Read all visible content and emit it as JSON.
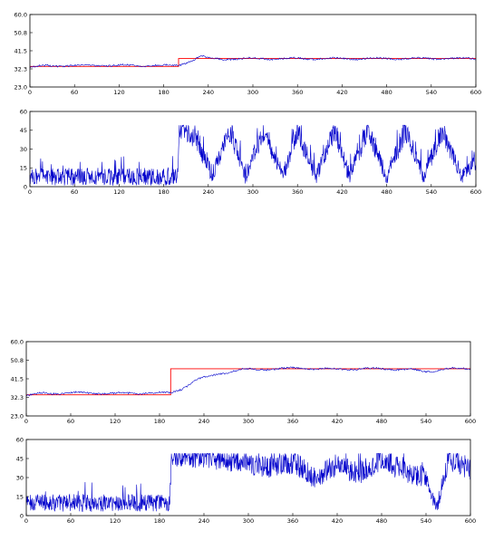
{
  "chart_data": [
    {
      "type": "line",
      "title": "",
      "xlabel": "",
      "ylabel": "",
      "xlim": [
        0,
        600
      ],
      "ylim": [
        23.0,
        60.0
      ],
      "xticks": [
        0,
        60,
        120,
        180,
        240,
        300,
        360,
        420,
        480,
        540,
        600
      ],
      "yticks": [
        "60.0",
        "50.8",
        "41.5",
        "32.3",
        "23.0"
      ],
      "grid": false,
      "series": [
        {
          "color": "#ff0000",
          "style": "step",
          "x": [
            0,
            200,
            200,
            600
          ],
          "y": [
            33.5,
            33.5,
            37.5,
            37.5
          ]
        },
        {
          "color": "#0000cc",
          "style": "approx",
          "x": [
            0,
            20,
            60,
            120,
            180,
            200,
            210,
            220,
            230,
            240,
            260,
            300,
            360,
            420,
            480,
            540,
            600
          ],
          "y": [
            33.0,
            33.8,
            34.0,
            34.0,
            34.0,
            34.0,
            35.5,
            37.0,
            38.8,
            37.5,
            37.3,
            37.5,
            37.5,
            37.5,
            37.5,
            37.5,
            37.5
          ]
        }
      ]
    },
    {
      "type": "line",
      "title": "",
      "xlabel": "",
      "ylabel": "",
      "xlim": [
        0,
        600
      ],
      "ylim": [
        0,
        60
      ],
      "xticks": [
        0,
        60,
        120,
        180,
        240,
        300,
        360,
        420,
        480,
        540,
        600
      ],
      "yticks": [
        "60",
        "45",
        "30",
        "15",
        "0"
      ],
      "grid": false,
      "series": [
        {
          "color": "#0000cc",
          "style": "noisy",
          "x": [
            0,
            100,
            199,
            201,
            220,
            245,
            270,
            290,
            315,
            340,
            360,
            385,
            410,
            430,
            455,
            480,
            505,
            530,
            555,
            580,
            600
          ],
          "y": [
            8,
            8,
            8,
            48,
            40,
            10,
            45,
            8,
            45,
            8,
            45,
            8,
            45,
            8,
            45,
            8,
            45,
            8,
            45,
            8,
            20
          ]
        }
      ]
    },
    {
      "type": "line",
      "title": "",
      "xlabel": "",
      "ylabel": "",
      "xlim": [
        0,
        600
      ],
      "ylim": [
        23.0,
        60.0
      ],
      "xticks": [
        0,
        60,
        120,
        180,
        240,
        300,
        360,
        420,
        480,
        540,
        600
      ],
      "yticks": [
        "60.0",
        "50.8",
        "41.5",
        "32.3",
        "23.0"
      ],
      "grid": false,
      "series": [
        {
          "color": "#ff0000",
          "style": "step",
          "x": [
            0,
            195,
            195,
            600
          ],
          "y": [
            33.5,
            33.5,
            46.5,
            46.5
          ]
        },
        {
          "color": "#0000cc",
          "style": "approx",
          "x": [
            0,
            20,
            60,
            120,
            180,
            195,
            210,
            230,
            260,
            290,
            330,
            360,
            420,
            480,
            520,
            540,
            570,
            600
          ],
          "y": [
            33.0,
            34.2,
            34.5,
            34.2,
            34.5,
            34.5,
            36.5,
            41.0,
            44.0,
            46.0,
            46.3,
            46.8,
            46.3,
            46.5,
            46.0,
            45.0,
            46.5,
            46.5
          ]
        }
      ]
    },
    {
      "type": "line",
      "title": "",
      "xlabel": "",
      "ylabel": "",
      "xlim": [
        0,
        600
      ],
      "ylim": [
        0,
        60
      ],
      "xticks": [
        0,
        60,
        120,
        180,
        240,
        300,
        360,
        420,
        480,
        540,
        600
      ],
      "yticks": [
        "60",
        "45",
        "30",
        "15",
        "0"
      ],
      "grid": false,
      "series": [
        {
          "color": "#0000cc",
          "style": "noisy",
          "x": [
            0,
            100,
            194,
            196,
            230,
            270,
            300,
            330,
            360,
            390,
            420,
            450,
            480,
            510,
            540,
            555,
            560,
            570,
            590,
            600
          ],
          "y": [
            10,
            10,
            10,
            48,
            46,
            44,
            40,
            38,
            42,
            30,
            40,
            33,
            45,
            35,
            30,
            5,
            20,
            45,
            40,
            35
          ]
        }
      ]
    }
  ]
}
